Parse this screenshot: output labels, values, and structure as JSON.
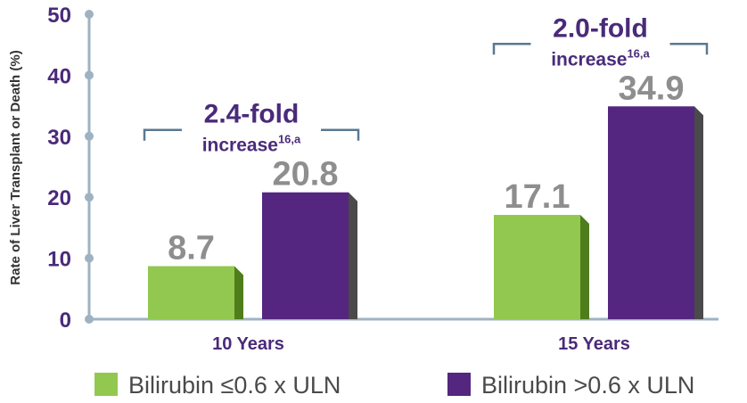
{
  "chart_data": {
    "type": "bar",
    "ylabel": "Rate of Liver Transplant or Death (%)",
    "ylim": [
      0,
      50
    ],
    "yticks": [
      "0",
      "10",
      "20",
      "30",
      "40",
      "50"
    ],
    "categories": [
      "10 Years",
      "15 Years"
    ],
    "series": [
      {
        "name": "Bilirubin ≤0.6 x ULN",
        "values": [
          8.7,
          17.1
        ],
        "labels": [
          "8.7",
          "17.1"
        ],
        "color": "#92c84f",
        "side_color": "#4e7d1b"
      },
      {
        "name": "Bilirubin >0.6 x ULN",
        "values": [
          20.8,
          34.9
        ],
        "labels": [
          "20.8",
          "34.9"
        ],
        "color": "#54267f",
        "side_color": "#4a4a4a"
      }
    ],
    "annotations": [
      {
        "category": "10 Years",
        "fold": "2.4-fold",
        "text": "increase",
        "superscript": "16,a"
      },
      {
        "category": "15 Years",
        "fold": "2.0-fold",
        "text": "increase",
        "superscript": "16,a"
      }
    ],
    "legend_position": "bottom",
    "axis_color": "#9fb2c2",
    "grid": false
  }
}
